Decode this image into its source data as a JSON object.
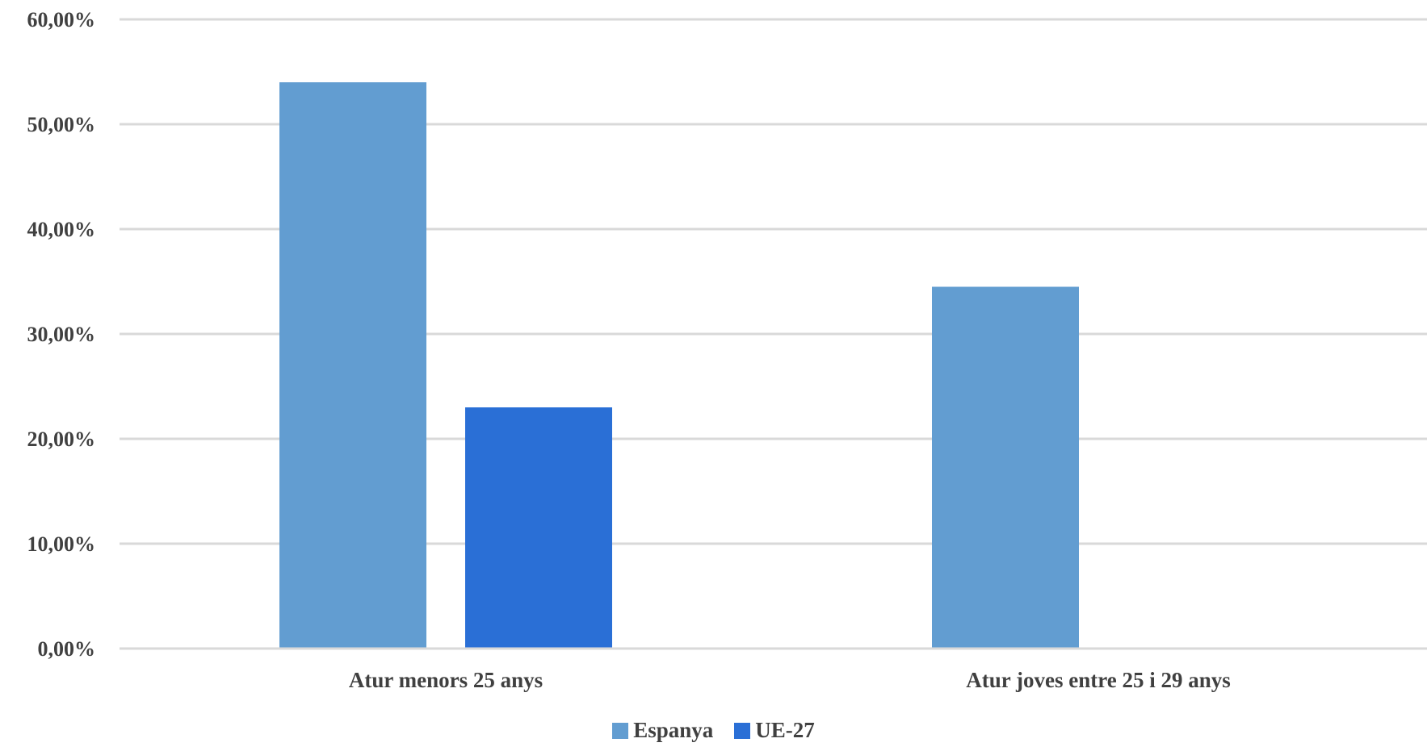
{
  "chart_data": {
    "type": "bar",
    "categories": [
      "Atur menors 25 anys",
      "Atur joves entre 25 i 29 anys"
    ],
    "series": [
      {
        "name": "Espanya",
        "values": [
          54.0,
          34.5
        ],
        "color": "#629dd1"
      },
      {
        "name": "UE-27",
        "values": [
          23.0,
          null
        ],
        "color": "#2a6fd6"
      }
    ],
    "yticks": [
      "0,00%",
      "10,00%",
      "20,00%",
      "30,00%",
      "40,00%",
      "50,00%",
      "60,00%"
    ],
    "ylim": [
      0,
      60
    ],
    "grid": true,
    "legend_position": "bottom",
    "colors": {
      "grid": "#d9d9d9",
      "text": "#404040"
    }
  }
}
